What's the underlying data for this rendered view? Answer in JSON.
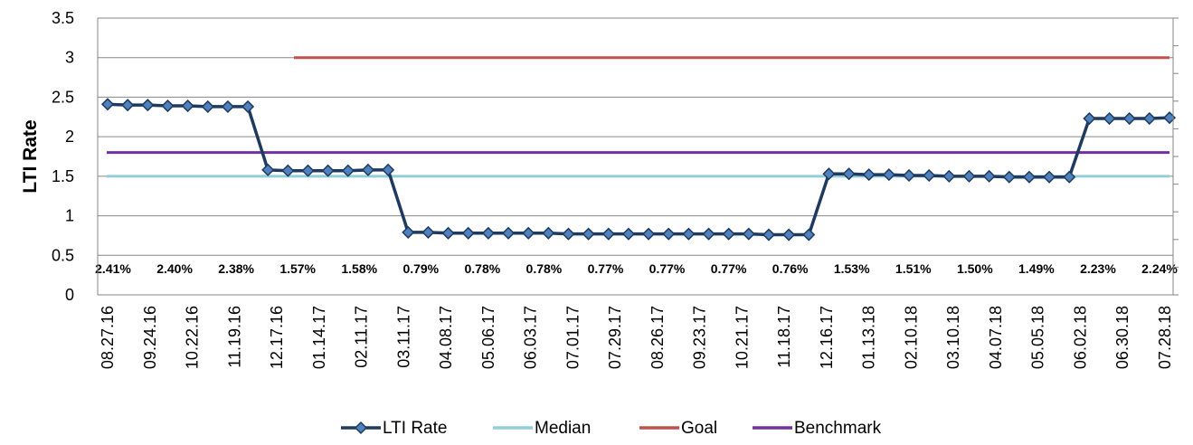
{
  "chart_data": {
    "type": "line",
    "ylabel": "LTI Rate",
    "ylim": [
      0,
      3.5
    ],
    "yticks": [
      "0",
      "0.5",
      "1",
      "1.5",
      "2",
      "2.5",
      "3",
      "3.5"
    ],
    "grid": true,
    "legend_position": "bottom",
    "x_tick_labels": [
      "08.27.16",
      "09.24.16",
      "10.22.16",
      "11.19.16",
      "12.17.16",
      "01.14.17",
      "02.11.17",
      "03.11.17",
      "04.08.17",
      "05.06.17",
      "06.03.17",
      "07.01.17",
      "07.29.17",
      "08.26.17",
      "09.23.17",
      "10.21.17",
      "11.18.17",
      "12.16.17",
      "01.13.18",
      "02.10.18",
      "03.10.18",
      "04.07.18",
      "05.05.18",
      "06.02.18",
      "06.30.18",
      "07.28.18"
    ],
    "data_labels": [
      "2.41%",
      "2.40%",
      "2.38%",
      "1.57%",
      "1.58%",
      "0.79%",
      "0.78%",
      "0.78%",
      "0.77%",
      "0.77%",
      "0.77%",
      "0.76%",
      "1.53%",
      "1.51%",
      "1.50%",
      "1.49%",
      "2.23%",
      "2.24%"
    ],
    "series": [
      {
        "name": "LTI Rate",
        "color": "#1f3a5f",
        "marker": "diamond",
        "values": [
          2.41,
          2.4,
          2.4,
          2.39,
          2.39,
          2.38,
          2.38,
          2.38,
          1.58,
          1.57,
          1.57,
          1.57,
          1.57,
          1.58,
          1.58,
          0.79,
          0.79,
          0.78,
          0.78,
          0.78,
          0.78,
          0.78,
          0.78,
          0.77,
          0.77,
          0.77,
          0.77,
          0.77,
          0.77,
          0.77,
          0.77,
          0.77,
          0.77,
          0.76,
          0.76,
          0.76,
          1.53,
          1.53,
          1.52,
          1.52,
          1.51,
          1.51,
          1.5,
          1.5,
          1.5,
          1.49,
          1.49,
          1.49,
          1.49,
          2.23,
          2.23,
          2.23,
          2.23,
          2.24
        ]
      },
      {
        "name": "Median",
        "color": "#92cddc",
        "value": 1.5
      },
      {
        "name": "Goal",
        "color": "#c0504d",
        "value": 3.0
      },
      {
        "name": "Benchmark",
        "color": "#7030a0",
        "value": 1.8
      }
    ]
  }
}
